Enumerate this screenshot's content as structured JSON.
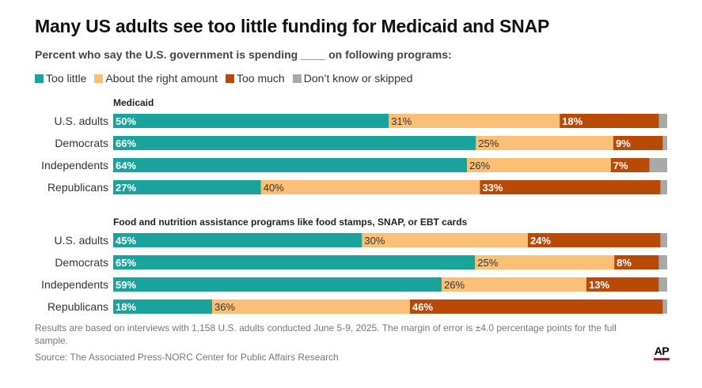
{
  "title": "Many US adults see too little funding for Medicaid and SNAP",
  "subtitle": "Percent who say the U.S. government is spending ____ on following programs:",
  "legend": [
    {
      "label": "Too little",
      "color": "#1aa39c"
    },
    {
      "label": "About the right amount",
      "color": "#fbbf76"
    },
    {
      "label": "Too much",
      "color": "#b94a06"
    },
    {
      "label": "Don’t know or skipped",
      "color": "#a9a9a9"
    }
  ],
  "chart_data": {
    "type": "bar",
    "orientation": "horizontal",
    "stacked": true,
    "series_names": [
      "Too little",
      "About the right amount",
      "Too much",
      "Don’t know or skipped"
    ],
    "colors": [
      "#1aa39c",
      "#fbbf76",
      "#b94a06",
      "#a9a9a9"
    ],
    "groups": [
      {
        "title": "Medicaid",
        "rows": [
          {
            "label": "U.S. adults",
            "values": [
              50,
              31,
              18,
              1.5
            ]
          },
          {
            "label": "Democrats",
            "values": [
              66,
              25,
              9,
              0.8
            ]
          },
          {
            "label": "Independents",
            "values": [
              64,
              26,
              7,
              3.2
            ]
          },
          {
            "label": "Republicans",
            "values": [
              27,
              40,
              33,
              1.2
            ]
          }
        ]
      },
      {
        "title": "Food and nutrition assistance programs like food stamps, SNAP, or EBT cards",
        "rows": [
          {
            "label": "U.S. adults",
            "values": [
              45,
              30,
              24,
              1.2
            ]
          },
          {
            "label": "Democrats",
            "values": [
              65,
              25,
              8,
              1.5
            ]
          },
          {
            "label": "Independents",
            "values": [
              59,
              26,
              13,
              1.5
            ]
          },
          {
            "label": "Republicans",
            "values": [
              18,
              36,
              46,
              0.8
            ]
          }
        ]
      }
    ],
    "value_label_format": "percent"
  },
  "footnote": "Results are based on interviews with 1,158 U.S. adults conducted June 5-9, 2025. The margin of error is ±4.0 percentage points for the full sample.",
  "source": "Source: The Associated Press-NORC Center for Public Affairs Research",
  "logo_text": "AP"
}
